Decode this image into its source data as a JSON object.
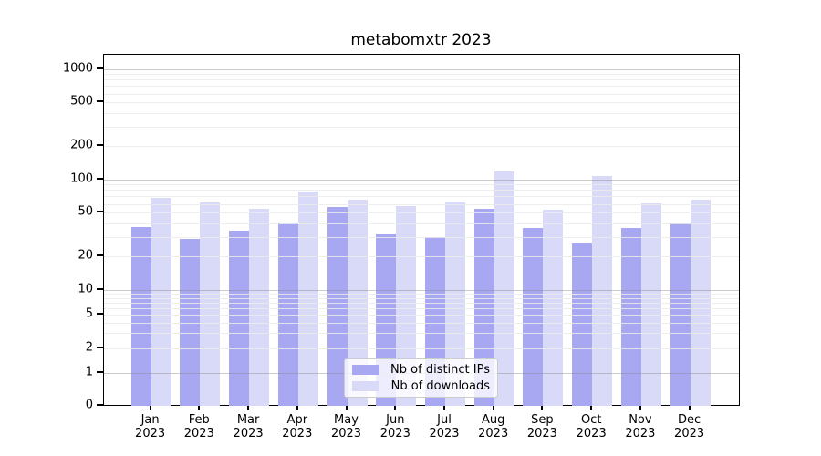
{
  "title": "metabomxtr 2023",
  "legend": {
    "items": [
      {
        "label": "Nb of distinct IPs",
        "series": "ips"
      },
      {
        "label": "Nb of downloads",
        "series": "downloads"
      }
    ]
  },
  "colors": {
    "ips_bar": "#a7a7f2",
    "downloads_bar": "#d9d9f8",
    "grid_major": "rgba(140,140,140,0.45)",
    "grid_minor": "rgba(235,235,235,0.85)",
    "axis": "#000000",
    "legend_border": "#cccccc",
    "text": "#000000"
  },
  "y_axis": {
    "tick_values": [
      0,
      1,
      2,
      5,
      10,
      20,
      50,
      100,
      200,
      500,
      1000
    ],
    "tick_labels": [
      "0",
      "1",
      "2",
      "5",
      "10",
      "20",
      "50",
      "100",
      "200",
      "500",
      "1000"
    ]
  },
  "x_axis": {
    "months": [
      "Jan",
      "Feb",
      "Mar",
      "Apr",
      "May",
      "Jun",
      "Jul",
      "Aug",
      "Sep",
      "Oct",
      "Nov",
      "Dec"
    ],
    "year": "2023"
  },
  "chart_data": {
    "type": "bar",
    "title": "metabomxtr 2023",
    "categories": [
      "Jan 2023",
      "Feb 2023",
      "Mar 2023",
      "Apr 2023",
      "May 2023",
      "Jun 2023",
      "Jul 2023",
      "Aug 2023",
      "Sep 2023",
      "Oct 2023",
      "Nov 2023",
      "Dec 2023"
    ],
    "series": [
      {
        "name": "Nb of distinct IPs",
        "values": [
          37,
          29,
          34,
          41,
          56,
          32,
          30,
          54,
          36,
          27,
          36,
          40
        ]
      },
      {
        "name": "Nb of downloads",
        "values": [
          68,
          62,
          54,
          77,
          65,
          57,
          63,
          119,
          53,
          107,
          61,
          66
        ]
      }
    ],
    "xlabel": "",
    "ylabel": "",
    "yscale": "log-like with zero baseline (ticks 0,1,2,5,10,20,50,100,200,500,1000)",
    "ylim": [
      0,
      1000
    ],
    "grid": true,
    "legend_position": "lower center inside plot"
  }
}
